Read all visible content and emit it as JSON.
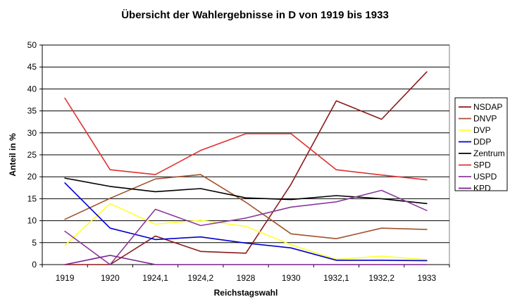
{
  "chart_data": {
    "type": "line",
    "title": "Übersicht der Wahlergebnisse in D von 1919 bis 1933",
    "xlabel": "Reichstagswahl",
    "ylabel": "Anteil in %",
    "ylim": [
      0,
      50
    ],
    "yticks": [
      0,
      5,
      10,
      15,
      20,
      25,
      30,
      35,
      40,
      45,
      50
    ],
    "grid": true,
    "legend_position": "right",
    "categories": [
      "1919",
      "1920",
      "1924,1",
      "1924,2",
      "1928",
      "1930",
      "1932,1",
      "1932,2",
      "1933"
    ],
    "series": [
      {
        "name": "NSDAP",
        "color": "#8B1A1A",
        "values": [
          0,
          0,
          6.5,
          3.0,
          2.6,
          18.3,
          37.3,
          33.1,
          43.9
        ]
      },
      {
        "name": "DNVP",
        "color": "#A0522D",
        "values": [
          10.3,
          15.1,
          19.5,
          20.5,
          14.2,
          7.0,
          5.9,
          8.3,
          8.0
        ]
      },
      {
        "name": "DVP",
        "color": "#FFFF33",
        "values": [
          4.4,
          13.9,
          9.2,
          10.1,
          8.7,
          4.5,
          1.2,
          1.9,
          1.1
        ]
      },
      {
        "name": "DDP",
        "color": "#0000CC",
        "values": [
          18.6,
          8.3,
          5.7,
          6.3,
          4.9,
          3.8,
          1.0,
          1.0,
          0.9
        ]
      },
      {
        "name": "Zentrum",
        "color": "#000000",
        "values": [
          19.7,
          17.8,
          16.6,
          17.3,
          15.2,
          14.8,
          15.7,
          15.0,
          13.9
        ]
      },
      {
        "name": "SPD",
        "color": "#E03030",
        "values": [
          37.9,
          21.6,
          20.5,
          26.0,
          29.8,
          29.8,
          21.6,
          20.4,
          19.3
        ]
      },
      {
        "name": "USPD",
        "color": "#8B3A9B",
        "values": [
          7.6,
          0,
          12.6,
          8.9,
          10.6,
          13.1,
          14.3,
          16.9,
          12.3
        ]
      },
      {
        "name": "KPD",
        "color": "#7A1F8F",
        "values": [
          0,
          2.1,
          0,
          0,
          0,
          0,
          0,
          0,
          0
        ]
      }
    ]
  }
}
